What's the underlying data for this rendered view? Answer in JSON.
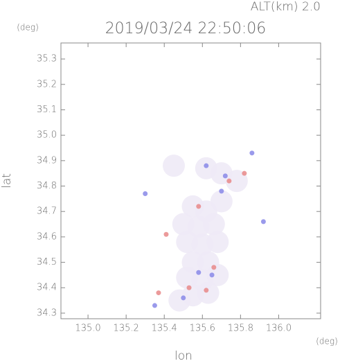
{
  "chart_data": {
    "type": "scatter",
    "title": "2019/03/24 22:50:06",
    "subtitle": "ALT(km) 2.0",
    "y_unit": "(deg)",
    "x_unit": "(deg)",
    "xlabel": "lon",
    "ylabel": "lat",
    "xlim": [
      134.858,
      136.22
    ],
    "ylim": [
      34.278,
      35.363
    ],
    "xticks": [
      {
        "value": 135.0,
        "label": "135.0"
      },
      135.2,
      135.4,
      135.6,
      135.8,
      {
        "value": 136.0,
        "label": "136.0"
      }
    ],
    "yticks": [
      34.3,
      34.4,
      34.5,
      34.6,
      34.7,
      34.8,
      34.9,
      {
        "value": 35.0,
        "label": "35.0"
      },
      35.1,
      35.2,
      35.3
    ],
    "series": [
      {
        "color": "#eeeaf6",
        "x": [
          135.55,
          135.62,
          135.5,
          135.58,
          135.66,
          135.52,
          135.6,
          135.68,
          135.55,
          135.63,
          135.52,
          135.6,
          135.68,
          135.55,
          135.63,
          135.48,
          135.62,
          135.7,
          135.78,
          135.45,
          135.7
        ],
        "values": [
          34.72,
          34.7,
          34.65,
          34.64,
          34.65,
          34.58,
          34.57,
          34.58,
          34.5,
          34.5,
          34.44,
          34.43,
          34.45,
          34.37,
          34.38,
          34.35,
          34.87,
          34.85,
          34.82,
          34.88,
          34.74
        ]
      },
      {
        "color": "#e88888",
        "x": [
          135.37,
          135.53,
          135.41,
          135.82,
          135.74,
          135.62,
          135.66,
          135.58
        ],
        "values": [
          34.38,
          34.4,
          34.61,
          34.85,
          34.82,
          34.39,
          34.48,
          34.72
        ]
      },
      {
        "color": "#8888e8",
        "x": [
          135.3,
          135.7,
          135.72,
          135.86,
          135.92,
          135.65,
          135.58,
          135.5,
          135.35,
          135.62
        ],
        "values": [
          34.77,
          34.78,
          34.84,
          34.93,
          34.66,
          34.45,
          34.46,
          34.36,
          34.33,
          34.88
        ]
      }
    ]
  }
}
